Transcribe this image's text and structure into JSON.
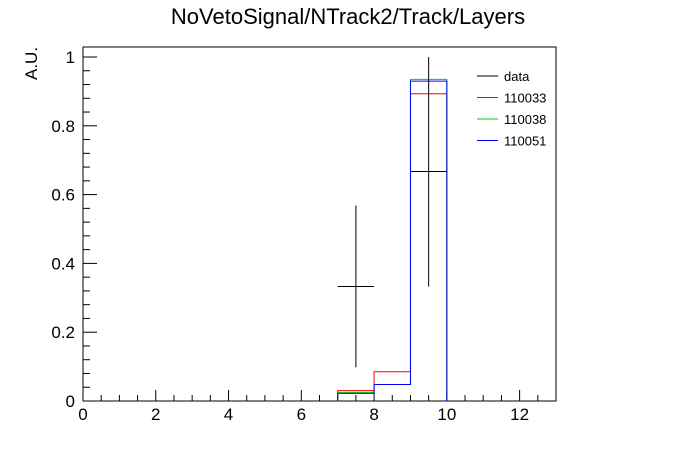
{
  "chart_data": {
    "type": "histogram",
    "title": "NoVetoSignal/NTrack2/Track/Layers",
    "xlabel": "",
    "ylabel": "A.U.",
    "xlim": [
      0,
      13
    ],
    "ylim": [
      0,
      1.03
    ],
    "x_ticks": [
      0,
      2,
      4,
      6,
      8,
      10,
      12
    ],
    "x_tick_labels": [
      "0",
      "2",
      "4",
      "6",
      "8",
      "10",
      "12"
    ],
    "y_ticks": [
      0,
      0.2,
      0.4,
      0.6,
      0.8,
      1
    ],
    "y_tick_labels": [
      "0",
      "0.2",
      "0.4",
      "0.6",
      "0.8",
      "1"
    ],
    "legend_position": "top-right",
    "data_points": {
      "name": "data",
      "color": "#000000",
      "points": [
        {
          "x": 7.5,
          "xerr": 0.5,
          "y": 0.333,
          "ylow": 0.098,
          "yhigh": 0.568
        },
        {
          "x": 9.5,
          "xerr": 0.5,
          "y": 0.667,
          "ylow": 0.333,
          "yhigh": 1.0
        }
      ]
    },
    "histograms": [
      {
        "name": "110033",
        "color": "#ff0000",
        "bins": [
          {
            "lo": 7,
            "hi": 8,
            "y": 0.03
          },
          {
            "lo": 8,
            "hi": 9,
            "y": 0.085
          },
          {
            "lo": 9,
            "hi": 10,
            "y": 0.893
          }
        ]
      },
      {
        "name": "110038",
        "color": "#00cc00",
        "bins": [
          {
            "lo": 7,
            "hi": 8,
            "y": 0.025
          },
          {
            "lo": 8,
            "hi": 9,
            "y": 0.048
          },
          {
            "lo": 9,
            "hi": 10,
            "y": 0.935
          }
        ]
      },
      {
        "name": "110051",
        "color": "#0000ff",
        "bins": [
          {
            "lo": 7,
            "hi": 8,
            "y": 0.022
          },
          {
            "lo": 8,
            "hi": 9,
            "y": 0.048
          },
          {
            "lo": 9,
            "hi": 10,
            "y": 0.93
          }
        ]
      }
    ],
    "legend": [
      {
        "label": "data",
        "color": "#000000"
      },
      {
        "label": "110033",
        "color": "#ff0000"
      },
      {
        "label": "110038",
        "color": "#00cc00"
      },
      {
        "label": "110051",
        "color": "#0000ff"
      }
    ]
  }
}
